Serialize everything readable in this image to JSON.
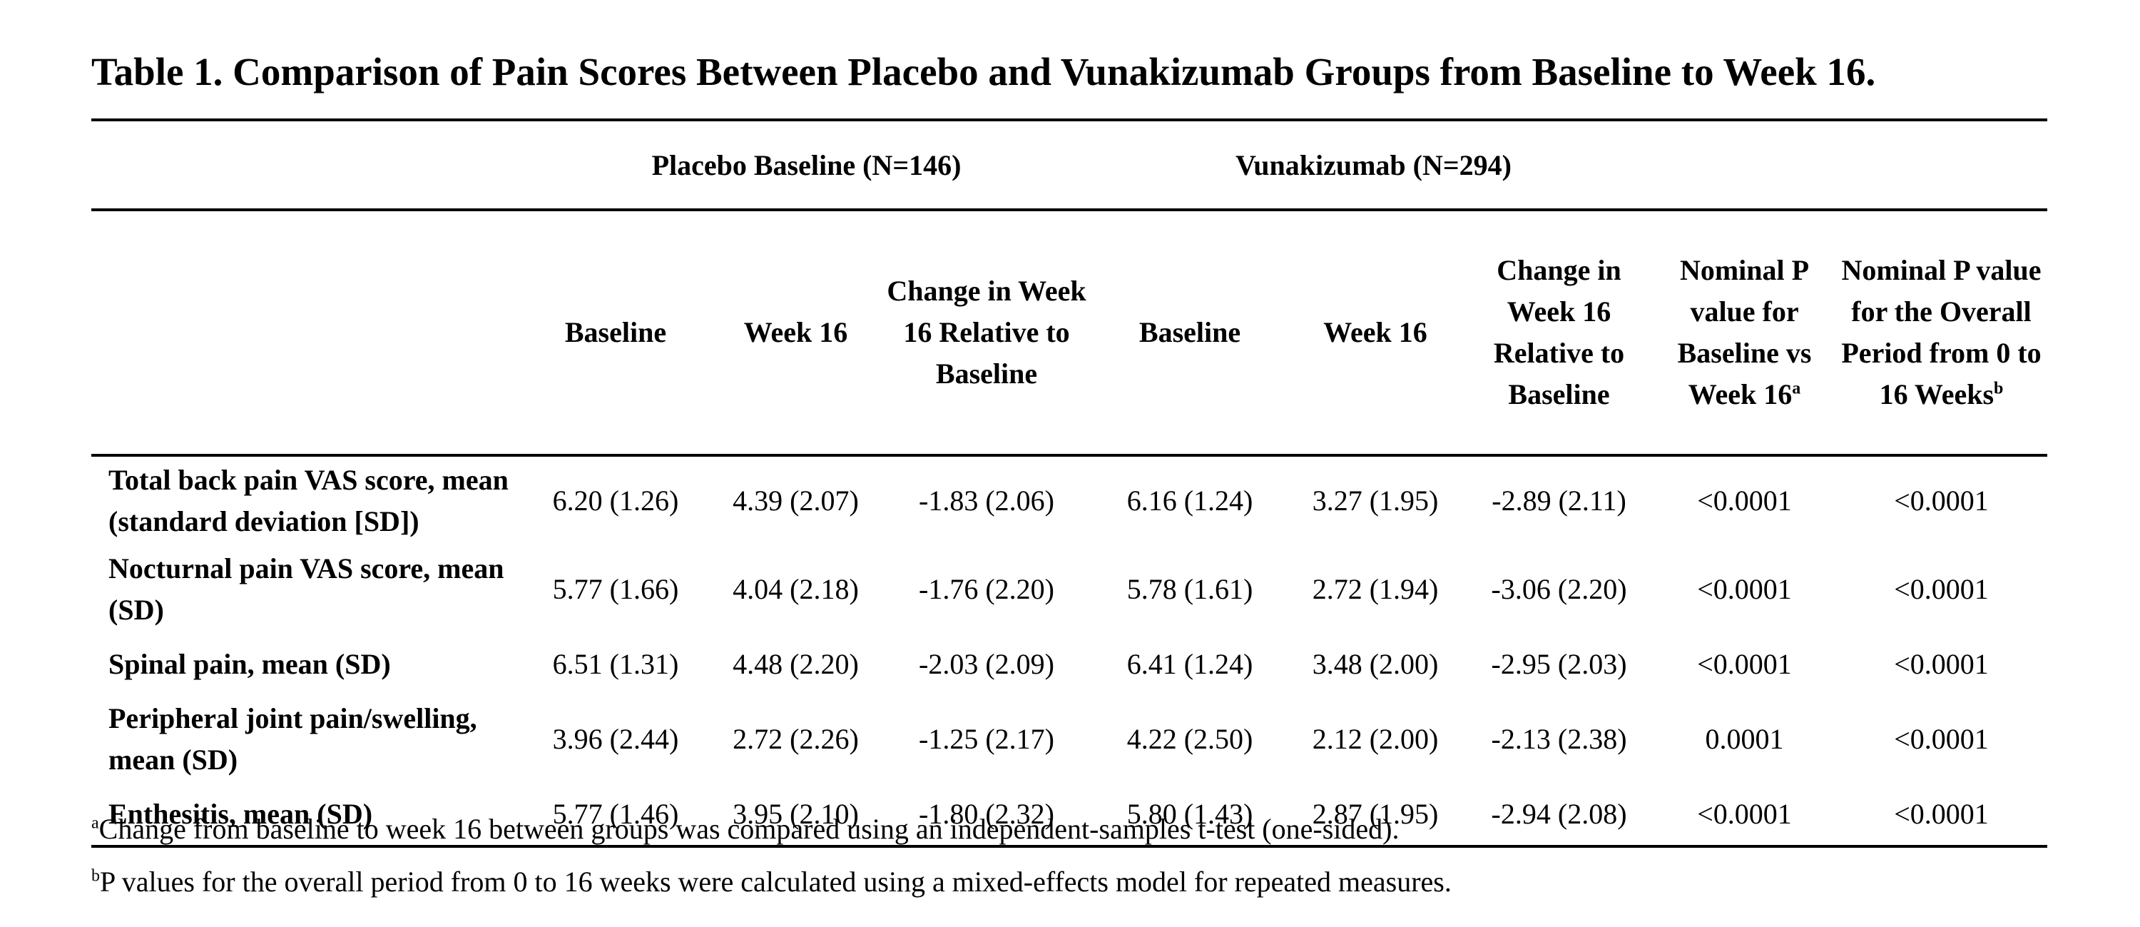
{
  "title": "Table 1. Comparison of Pain Scores Between Placebo and Vunakizumab Groups from Baseline to Week 16.",
  "groups": {
    "placebo": "Placebo Baseline (N=146)",
    "vunakizumab": "Vunakizumab (N=294)"
  },
  "headers": {
    "placebo_baseline": "Baseline",
    "placebo_week16": "Week 16",
    "placebo_change": "Change in Week 16 Relative to Baseline",
    "vuna_baseline": "Baseline",
    "vuna_week16": "Week 16",
    "vuna_change": "Change in Week 16 Relative to Baseline",
    "p_baseline_vs_week16": "Nominal P value for Baseline vs Week 16",
    "p_baseline_vs_week16_marker": "a",
    "p_overall": "Nominal P value for the Overall Period from 0 to 16 Weeks",
    "p_overall_marker": "b"
  },
  "rows": [
    {
      "label": "Total back pain VAS score, mean (standard deviation [SD])",
      "placebo_baseline": "6.20 (1.26)",
      "placebo_week16": "4.39 (2.07)",
      "placebo_change": "-1.83 (2.06)",
      "vuna_baseline": "6.16 (1.24)",
      "vuna_week16": "3.27 (1.95)",
      "vuna_change": "-2.89 (2.11)",
      "p_baseline_vs_week16": "<0.0001",
      "p_overall": "<0.0001"
    },
    {
      "label": "Nocturnal pain VAS score, mean (SD)",
      "placebo_baseline": "5.77 (1.66)",
      "placebo_week16": "4.04 (2.18)",
      "placebo_change": "-1.76 (2.20)",
      "vuna_baseline": "5.78 (1.61)",
      "vuna_week16": "2.72 (1.94)",
      "vuna_change": "-3.06 (2.20)",
      "p_baseline_vs_week16": "<0.0001",
      "p_overall": "<0.0001"
    },
    {
      "label": "Spinal pain, mean (SD)",
      "placebo_baseline": "6.51 (1.31)",
      "placebo_week16": "4.48 (2.20)",
      "placebo_change": "-2.03 (2.09)",
      "vuna_baseline": "6.41 (1.24)",
      "vuna_week16": "3.48 (2.00)",
      "vuna_change": "-2.95 (2.03)",
      "p_baseline_vs_week16": "<0.0001",
      "p_overall": "<0.0001"
    },
    {
      "label": "Peripheral joint pain/swelling, mean (SD)",
      "placebo_baseline": "3.96 (2.44)",
      "placebo_week16": "2.72 (2.26)",
      "placebo_change": "-1.25 (2.17)",
      "vuna_baseline": "4.22 (2.50)",
      "vuna_week16": "2.12 (2.00)",
      "vuna_change": "-2.13 (2.38)",
      "p_baseline_vs_week16": "0.0001",
      "p_overall": "<0.0001"
    },
    {
      "label": "Enthesitis, mean (SD)",
      "placebo_baseline": "5.77 (1.46)",
      "placebo_week16": "3.95 (2.10)",
      "placebo_change": "-1.80 (2.32)",
      "vuna_baseline": "5.80 (1.43)",
      "vuna_week16": "2.87 (1.95)",
      "vuna_change": "-2.94 (2.08)",
      "p_baseline_vs_week16": "<0.0001",
      "p_overall": "<0.0001"
    }
  ],
  "footnotes": {
    "a_marker": "a",
    "a_text": "Change from baseline to week 16 between groups was compared using an independent-samples t-test (one-sided).",
    "b_marker": "b",
    "b_text": "P values for the overall period from 0 to 16 weeks were calculated using a mixed-effects model for repeated measures."
  }
}
